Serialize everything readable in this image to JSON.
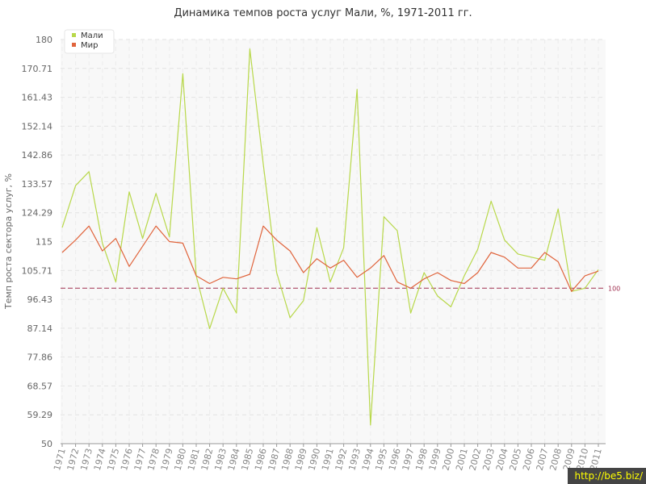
{
  "chart_data": {
    "type": "line",
    "title": "Динамика темпов роста услуг Мали, %, 1971-2011 гг.",
    "ylabel": "Темп роста сектора услуг, %",
    "xlabel": "",
    "ylim": [
      50,
      180
    ],
    "yticks": [
      "50",
      "59.29",
      "68.57",
      "77.86",
      "87.14",
      "96.43",
      "105.71",
      "115",
      "124.29",
      "133.57",
      "142.86",
      "152.14",
      "161.43",
      "170.71",
      "180"
    ],
    "categories": [
      "1971",
      "1972",
      "1973",
      "1974",
      "1975",
      "1976",
      "1977",
      "1978",
      "1979",
      "1980",
      "1981",
      "1982",
      "1983",
      "1984",
      "1985",
      "1986",
      "1987",
      "1988",
      "1989",
      "1990",
      "1991",
      "1992",
      "1993",
      "1994",
      "1995",
      "1996",
      "1997",
      "1998",
      "1999",
      "2000",
      "2001",
      "2002",
      "2003",
      "2004",
      "2005",
      "2006",
      "2007",
      "2008",
      "2009",
      "2010",
      "2011"
    ],
    "series": [
      {
        "name": "Мали",
        "color": "#b8d84a",
        "values": [
          119.5,
          133,
          137.5,
          114.5,
          102,
          131,
          116,
          130.5,
          116.5,
          169,
          104,
          87,
          100,
          92,
          177,
          140,
          105,
          90.5,
          96,
          119.5,
          102,
          113,
          164,
          56,
          123,
          118.5,
          92,
          105,
          97.5,
          94,
          104,
          112.5,
          128,
          115.5,
          111,
          110,
          109,
          125.5,
          99,
          100,
          106
        ]
      },
      {
        "name": "Мир",
        "color": "#e0643c",
        "values": [
          111.5,
          115.5,
          120,
          112,
          116,
          107,
          113.5,
          120,
          115,
          114.5,
          104,
          101.5,
          103.5,
          103,
          104.5,
          120,
          115.5,
          112,
          105,
          109.5,
          106.5,
          109,
          103.5,
          106.5,
          110.5,
          102,
          100,
          103,
          105,
          102.5,
          101.5,
          105,
          111.5,
          110,
          106.5,
          106.5,
          111.5,
          108.5,
          99,
          104,
          105.5
        ]
      }
    ],
    "reference_line": {
      "value": 100,
      "label": "100",
      "color": "#a03050"
    },
    "grid": true,
    "legend_position": "top-left"
  },
  "watermark": "http://be5.biz/"
}
